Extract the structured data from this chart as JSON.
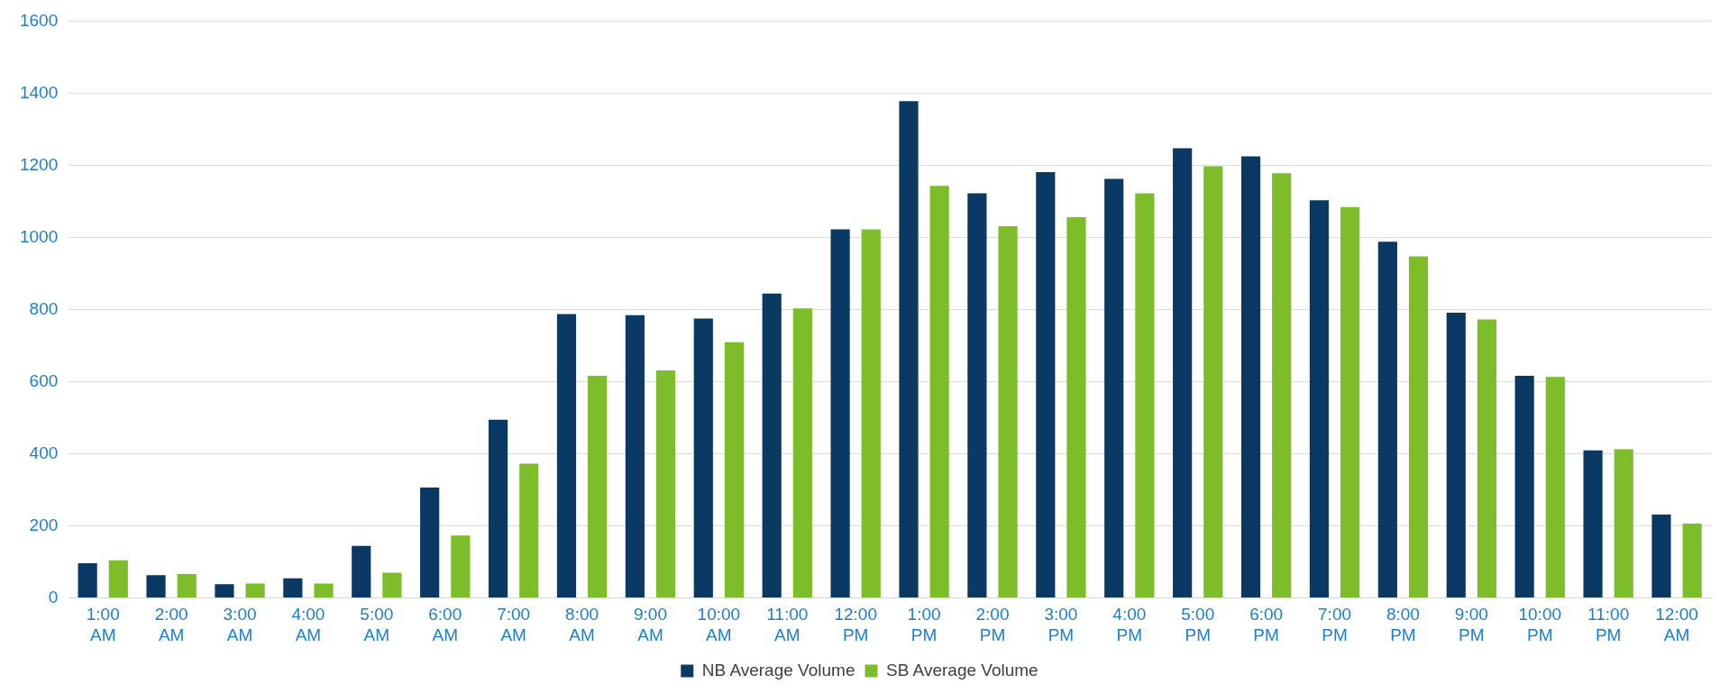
{
  "chart_data": {
    "type": "bar",
    "categories": [
      "1:00 AM",
      "2:00 AM",
      "3:00 AM",
      "4:00 AM",
      "5:00 AM",
      "6:00 AM",
      "7:00 AM",
      "8:00 AM",
      "9:00 AM",
      "10:00 AM",
      "11:00 AM",
      "12:00 PM",
      "1:00 PM",
      "2:00 PM",
      "3:00 PM",
      "4:00 PM",
      "5:00 PM",
      "6:00 PM",
      "7:00 PM",
      "8:00 PM",
      "9:00 PM",
      "10:00 PM",
      "11:00 PM",
      "12:00 AM"
    ],
    "series": [
      {
        "name": "NB Average Volume",
        "color": "#0a3a64",
        "values": [
          96,
          63,
          38,
          54,
          144,
          306,
          494,
          787,
          784,
          775,
          844,
          1022,
          1378,
          1122,
          1181,
          1162,
          1247,
          1225,
          1103,
          988,
          791,
          616,
          409,
          231
        ]
      },
      {
        "name": "SB Average Volume",
        "color": "#7dbd2a",
        "values": [
          104,
          66,
          40,
          40,
          70,
          173,
          372,
          616,
          631,
          709,
          803,
          1022,
          1143,
          1031,
          1056,
          1122,
          1197,
          1178,
          1084,
          947,
          772,
          613,
          412,
          206
        ]
      }
    ],
    "ylim": [
      0,
      1600
    ],
    "yticks": [
      0,
      200,
      400,
      600,
      800,
      1000,
      1200,
      1400,
      1600
    ],
    "grid": "y",
    "legend": "bottom"
  }
}
